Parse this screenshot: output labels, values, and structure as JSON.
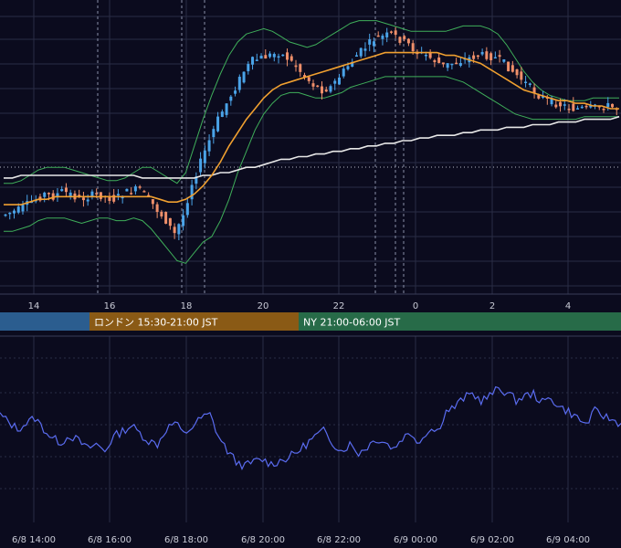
{
  "colors": {
    "background": "#0b0b1e",
    "grid": "#2a2d45",
    "candle_up": "#4aa3e8",
    "candle_down": "#ef8f6a",
    "ma_orange": "#f0a030",
    "ma_white": "#e8e8e8",
    "bollinger": "#3fae5a",
    "oscillator": "#5a6cf0",
    "tokyo": "#2b5d8f",
    "london": "#8a5a15",
    "ny": "#276b48"
  },
  "chart_data": [
    {
      "type": "candlestick",
      "x_tick_labels": [
        "14",
        "16",
        "18",
        "20",
        "22",
        "0",
        "2",
        "4"
      ],
      "y_tick_labels": [],
      "close_path": [
        0.78,
        0.77,
        0.76,
        0.74,
        0.72,
        0.7,
        0.71,
        0.69,
        0.7,
        0.72,
        0.71,
        0.7,
        0.71,
        0.72,
        0.7,
        0.69,
        0.68,
        0.72,
        0.76,
        0.8,
        0.85,
        0.78,
        0.66,
        0.58,
        0.5,
        0.42,
        0.36,
        0.3,
        0.24,
        0.2,
        0.19,
        0.18,
        0.17,
        0.19,
        0.22,
        0.26,
        0.29,
        0.31,
        0.3,
        0.26,
        0.22,
        0.18,
        0.15,
        0.12,
        0.11,
        0.1,
        0.12,
        0.14,
        0.17,
        0.18,
        0.2,
        0.22,
        0.21,
        0.2,
        0.19,
        0.18,
        0.18,
        0.19,
        0.21,
        0.24,
        0.27,
        0.3,
        0.33,
        0.35,
        0.36,
        0.37,
        0.38,
        0.38,
        0.38,
        0.37,
        0.37,
        0.38
      ],
      "series": [
        {
          "role": "moving-average-short",
          "values": [
            0.74,
            0.74,
            0.74,
            0.73,
            0.72,
            0.72,
            0.71,
            0.71,
            0.71,
            0.71,
            0.71,
            0.71,
            0.71,
            0.71,
            0.71,
            0.71,
            0.71,
            0.71,
            0.72,
            0.73,
            0.73,
            0.72,
            0.7,
            0.67,
            0.63,
            0.58,
            0.52,
            0.47,
            0.42,
            0.38,
            0.34,
            0.31,
            0.29,
            0.28,
            0.27,
            0.26,
            0.25,
            0.24,
            0.23,
            0.22,
            0.21,
            0.2,
            0.19,
            0.18,
            0.17,
            0.17,
            0.17,
            0.17,
            0.17,
            0.17,
            0.17,
            0.18,
            0.18,
            0.19,
            0.2,
            0.21,
            0.23,
            0.25,
            0.27,
            0.29,
            0.31,
            0.32,
            0.33,
            0.34,
            0.35,
            0.35,
            0.36,
            0.36,
            0.37,
            0.37,
            0.38,
            0.38
          ]
        },
        {
          "role": "moving-average-long",
          "values": [
            0.64,
            0.64,
            0.63,
            0.63,
            0.63,
            0.63,
            0.63,
            0.63,
            0.63,
            0.63,
            0.63,
            0.63,
            0.63,
            0.63,
            0.63,
            0.63,
            0.64,
            0.64,
            0.64,
            0.64,
            0.64,
            0.64,
            0.64,
            0.63,
            0.63,
            0.62,
            0.62,
            0.61,
            0.6,
            0.6,
            0.59,
            0.58,
            0.57,
            0.57,
            0.56,
            0.56,
            0.55,
            0.55,
            0.54,
            0.54,
            0.53,
            0.53,
            0.52,
            0.52,
            0.51,
            0.51,
            0.5,
            0.5,
            0.49,
            0.49,
            0.48,
            0.48,
            0.48,
            0.47,
            0.47,
            0.46,
            0.46,
            0.46,
            0.45,
            0.45,
            0.45,
            0.44,
            0.44,
            0.44,
            0.43,
            0.43,
            0.43,
            0.42,
            0.42,
            0.42,
            0.42,
            0.41
          ]
        },
        {
          "role": "bollinger-upper",
          "values": [
            0.66,
            0.66,
            0.65,
            0.63,
            0.61,
            0.6,
            0.6,
            0.6,
            0.61,
            0.62,
            0.63,
            0.64,
            0.65,
            0.65,
            0.64,
            0.62,
            0.6,
            0.6,
            0.62,
            0.64,
            0.66,
            0.62,
            0.52,
            0.42,
            0.33,
            0.25,
            0.18,
            0.13,
            0.1,
            0.09,
            0.08,
            0.09,
            0.11,
            0.13,
            0.14,
            0.15,
            0.14,
            0.12,
            0.1,
            0.08,
            0.06,
            0.05,
            0.05,
            0.05,
            0.06,
            0.07,
            0.08,
            0.09,
            0.09,
            0.09,
            0.09,
            0.09,
            0.08,
            0.07,
            0.07,
            0.07,
            0.08,
            0.1,
            0.14,
            0.19,
            0.24,
            0.28,
            0.31,
            0.33,
            0.34,
            0.35,
            0.35,
            0.35,
            0.34,
            0.34,
            0.34,
            0.34
          ]
        },
        {
          "role": "bollinger-lower",
          "values": [
            0.84,
            0.84,
            0.83,
            0.82,
            0.8,
            0.79,
            0.79,
            0.79,
            0.8,
            0.81,
            0.8,
            0.79,
            0.79,
            0.8,
            0.8,
            0.79,
            0.8,
            0.83,
            0.87,
            0.91,
            0.95,
            0.96,
            0.92,
            0.88,
            0.86,
            0.8,
            0.72,
            0.62,
            0.54,
            0.46,
            0.4,
            0.36,
            0.33,
            0.32,
            0.32,
            0.33,
            0.34,
            0.34,
            0.33,
            0.32,
            0.3,
            0.29,
            0.28,
            0.27,
            0.26,
            0.26,
            0.26,
            0.26,
            0.26,
            0.26,
            0.26,
            0.26,
            0.27,
            0.28,
            0.3,
            0.32,
            0.34,
            0.36,
            0.38,
            0.4,
            0.41,
            0.42,
            0.42,
            0.42,
            0.42,
            0.42,
            0.42,
            0.41,
            0.41,
            0.41,
            0.41,
            0.41
          ]
        }
      ],
      "sessions": [
        {
          "label": "",
          "color": "#2b5d8f"
        },
        {
          "label": "ロンドン 15:30-21:00 JST",
          "color": "#8a5a15"
        },
        {
          "label": "NY 21:00-06:00 JST",
          "color": "#276b48"
        }
      ],
      "grid": true,
      "legend": "none"
    },
    {
      "type": "line",
      "x_tick_labels": [
        "6/8 14:00",
        "6/8 16:00",
        "6/8 18:00",
        "6/8 20:00",
        "6/8 22:00",
        "6/9 00:00",
        "6/9 02:00",
        "6/9 04:00"
      ],
      "y_tick_labels": [],
      "series": [
        {
          "role": "oscillator",
          "values": [
            0.55,
            0.48,
            0.42,
            0.47,
            0.52,
            0.42,
            0.33,
            0.3,
            0.36,
            0.31,
            0.24,
            0.28,
            0.22,
            0.35,
            0.4,
            0.45,
            0.38,
            0.31,
            0.28,
            0.42,
            0.48,
            0.37,
            0.44,
            0.52,
            0.55,
            0.35,
            0.22,
            0.12,
            0.08,
            0.12,
            0.14,
            0.1,
            0.13,
            0.16,
            0.21,
            0.28,
            0.35,
            0.4,
            0.3,
            0.22,
            0.28,
            0.2,
            0.26,
            0.33,
            0.3,
            0.24,
            0.34,
            0.38,
            0.3,
            0.42,
            0.4,
            0.58,
            0.62,
            0.7,
            0.74,
            0.68,
            0.72,
            0.79,
            0.75,
            0.68,
            0.72,
            0.74,
            0.66,
            0.7,
            0.62,
            0.58,
            0.52,
            0.46,
            0.58,
            0.54,
            0.5,
            0.47
          ]
        }
      ],
      "grid": true,
      "legend": "none"
    }
  ]
}
